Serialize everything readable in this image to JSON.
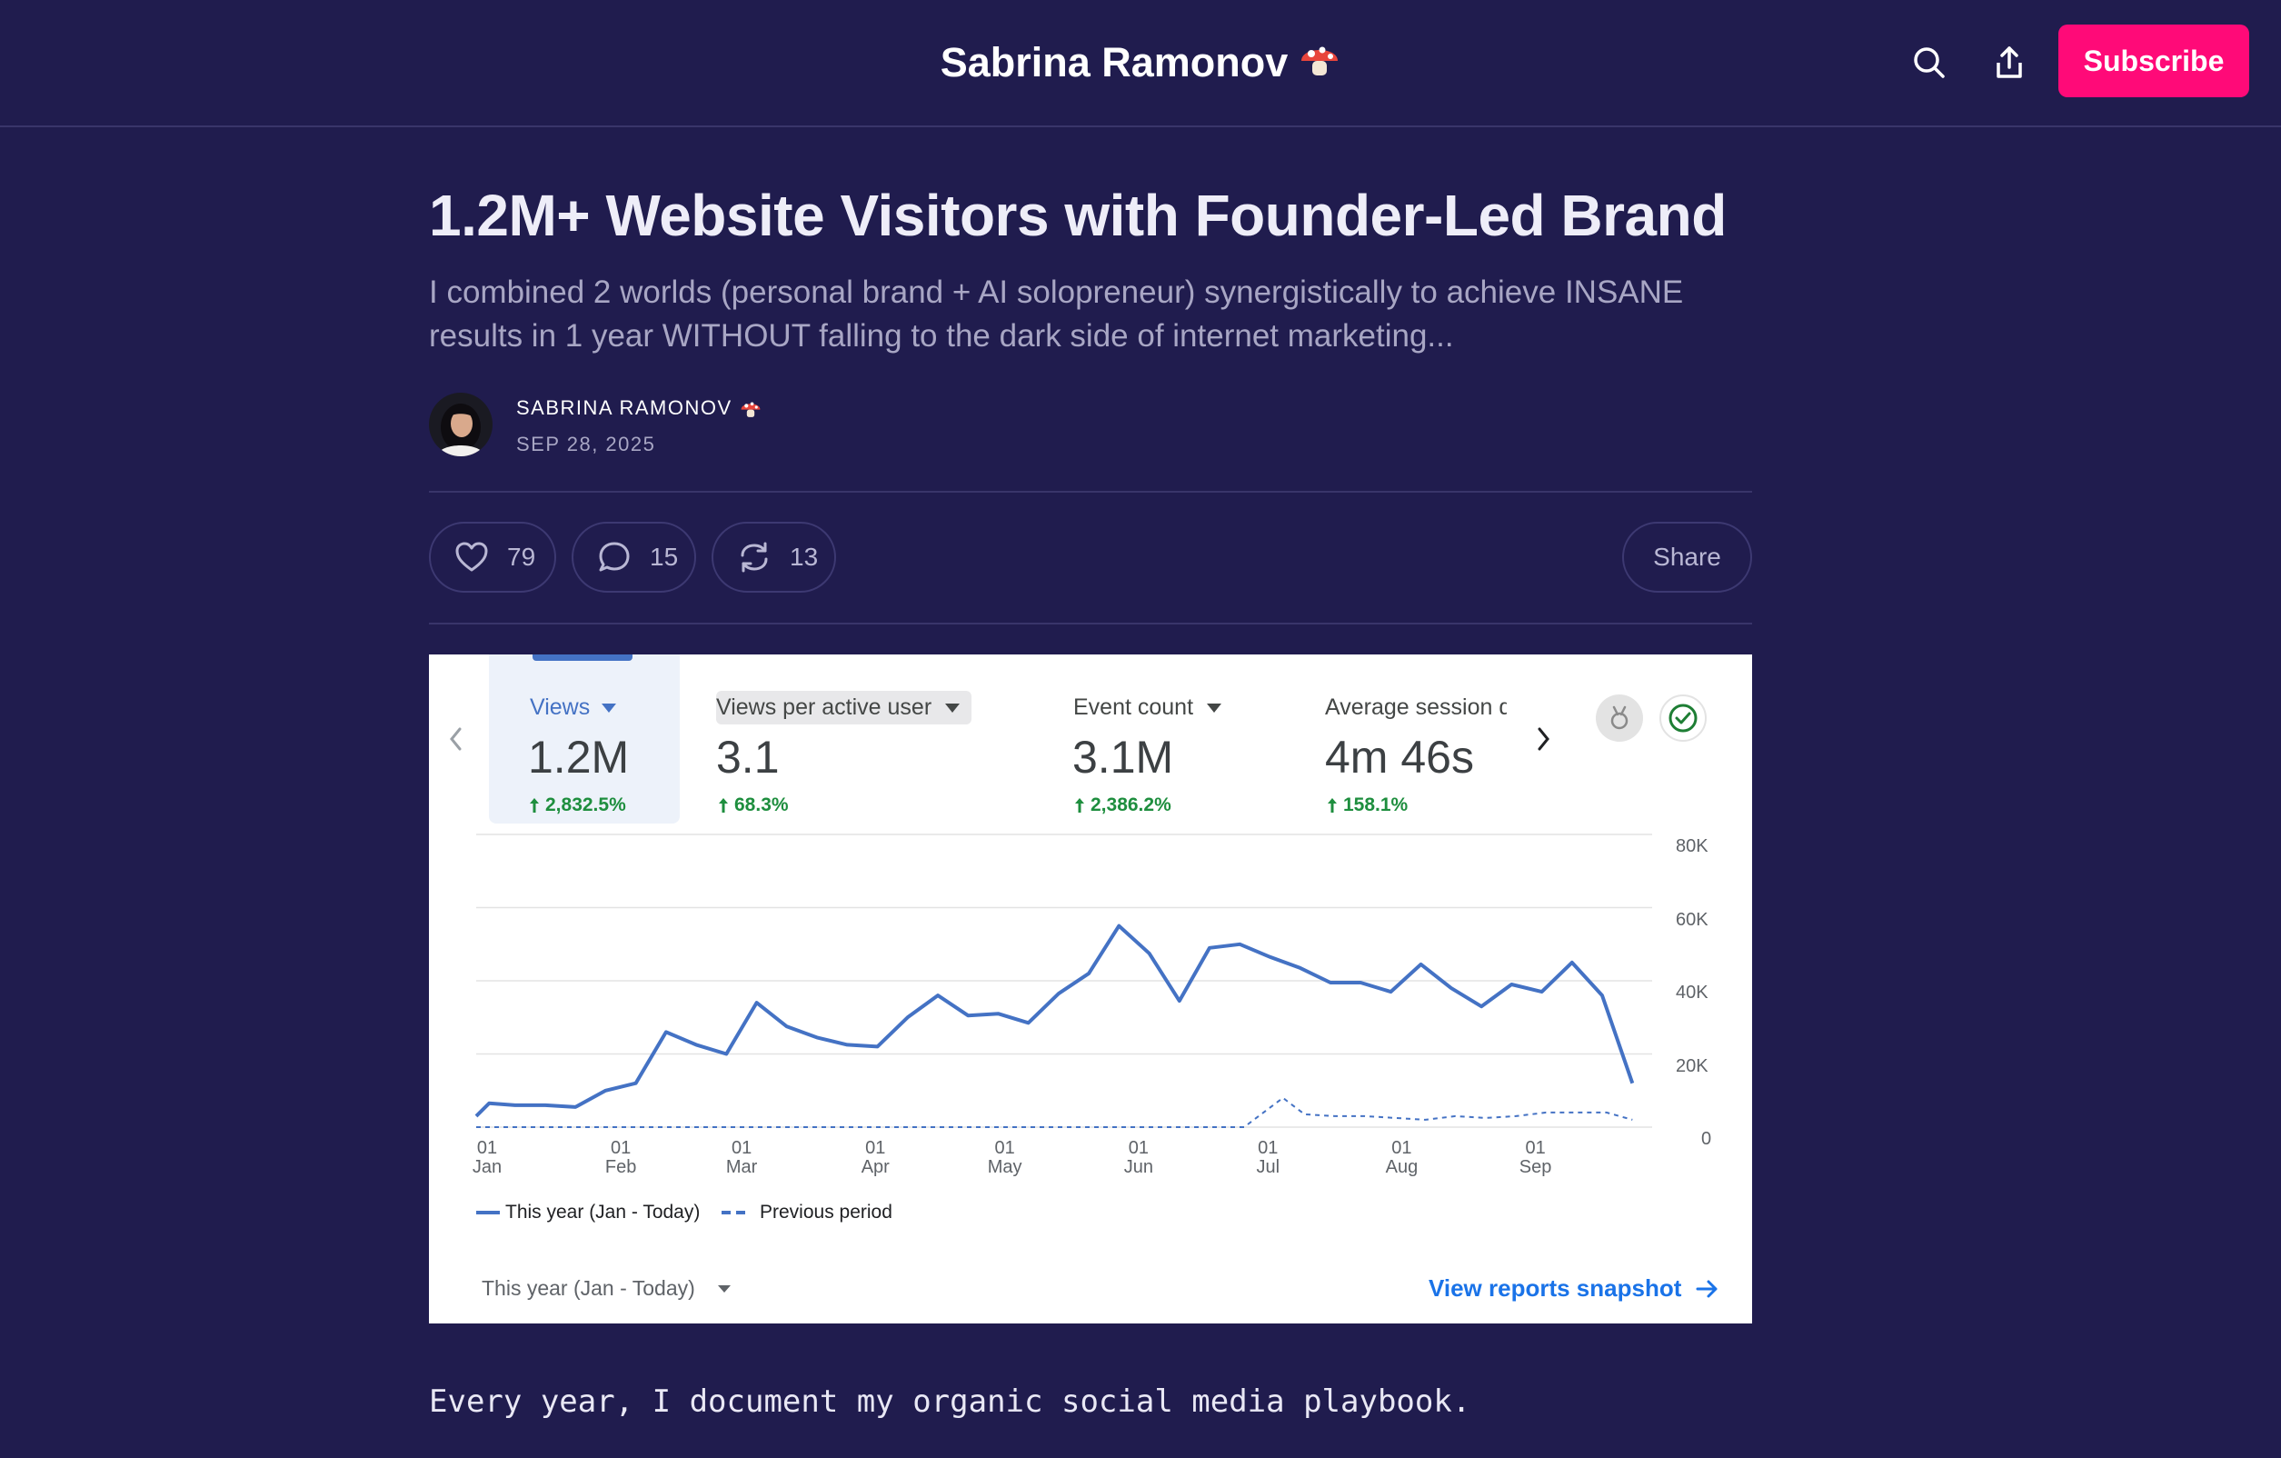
{
  "header": {
    "site_title": "Sabrina Ramonov",
    "subscribe_label": "Subscribe"
  },
  "post": {
    "title": "1.2M+ Website Visitors with Founder-Led Brand",
    "subtitle": "I combined 2 worlds (personal brand + AI solopreneur) synergistically to achieve INSANE results in 1 year WITHOUT falling to the dark side of internet marketing...",
    "author": "SABRINA RAMONOV",
    "date": "SEP 28, 2025",
    "body_first_line": "Every year, I document my organic social media playbook."
  },
  "actions": {
    "likes": "79",
    "comments": "15",
    "restacks": "13",
    "share_label": "Share"
  },
  "snapshot": {
    "metrics": [
      {
        "label": "Views",
        "value": "1.2M",
        "change": "2,832.5%"
      },
      {
        "label": "Views per active user",
        "value": "3.1",
        "change": "68.3%"
      },
      {
        "label": "Event count",
        "value": "3.1M",
        "change": "2,386.2%"
      },
      {
        "label": "Average session d",
        "value": "4m 46s",
        "change": "158.1%"
      }
    ],
    "footer_range": "This year (Jan - Today)",
    "footer_link": "View reports snapshot"
  },
  "chart_data": {
    "type": "line",
    "x_ticks": [
      {
        "day": "01",
        "month": "Jan"
      },
      {
        "day": "01",
        "month": "Feb"
      },
      {
        "day": "01",
        "month": "Mar"
      },
      {
        "day": "01",
        "month": "Apr"
      },
      {
        "day": "01",
        "month": "May"
      },
      {
        "day": "01",
        "month": "Jun"
      },
      {
        "day": "01",
        "month": "Jul"
      },
      {
        "day": "01",
        "month": "Aug"
      },
      {
        "day": "01",
        "month": "Sep"
      }
    ],
    "y_ticks": [
      "80K",
      "60K",
      "40K",
      "20K",
      "0"
    ],
    "ylim": [
      0,
      80000
    ],
    "grid": true,
    "legend_position": "bottom-left",
    "series": [
      {
        "name": "This year (Jan - Today)",
        "style": "solid",
        "color": "#4472c4",
        "x": [
          "2025-01-01",
          "2025-01-04",
          "2025-01-10",
          "2025-01-17",
          "2025-01-24",
          "2025-01-31",
          "2025-02-07",
          "2025-02-14",
          "2025-02-21",
          "2025-02-28",
          "2025-03-07",
          "2025-03-14",
          "2025-03-21",
          "2025-03-28",
          "2025-04-04",
          "2025-04-11",
          "2025-04-18",
          "2025-04-25",
          "2025-05-02",
          "2025-05-09",
          "2025-05-16",
          "2025-05-23",
          "2025-05-30",
          "2025-06-06",
          "2025-06-13",
          "2025-06-20",
          "2025-06-27",
          "2025-07-04",
          "2025-07-11",
          "2025-07-18",
          "2025-07-25",
          "2025-08-01",
          "2025-08-08",
          "2025-08-15",
          "2025-08-22",
          "2025-08-29",
          "2025-09-05",
          "2025-09-12",
          "2025-09-19",
          "2025-09-26"
        ],
        "values": [
          3000,
          6500,
          6000,
          6000,
          5500,
          10000,
          12000,
          26000,
          22500,
          20000,
          34000,
          27500,
          24500,
          22500,
          22000,
          30000,
          36000,
          30500,
          31000,
          28500,
          36500,
          42000,
          55000,
          47500,
          34500,
          49000,
          50000,
          46500,
          43500,
          39500,
          39500,
          37000,
          44500,
          38000,
          33000,
          39000,
          37000,
          45000,
          36000,
          12000
        ]
      },
      {
        "name": "Previous period",
        "style": "dashed",
        "color": "#4472c4",
        "x": [
          "2025-01-01",
          "2025-06-28",
          "2025-07-07",
          "2025-07-12",
          "2025-07-19",
          "2025-07-26",
          "2025-08-02",
          "2025-08-09",
          "2025-08-16",
          "2025-08-23",
          "2025-08-30",
          "2025-09-06",
          "2025-09-13",
          "2025-09-20",
          "2025-09-26"
        ],
        "values": [
          0,
          0,
          8000,
          3500,
          3000,
          3000,
          2500,
          2000,
          3000,
          2500,
          3000,
          4000,
          4000,
          4000,
          2000
        ]
      }
    ]
  }
}
